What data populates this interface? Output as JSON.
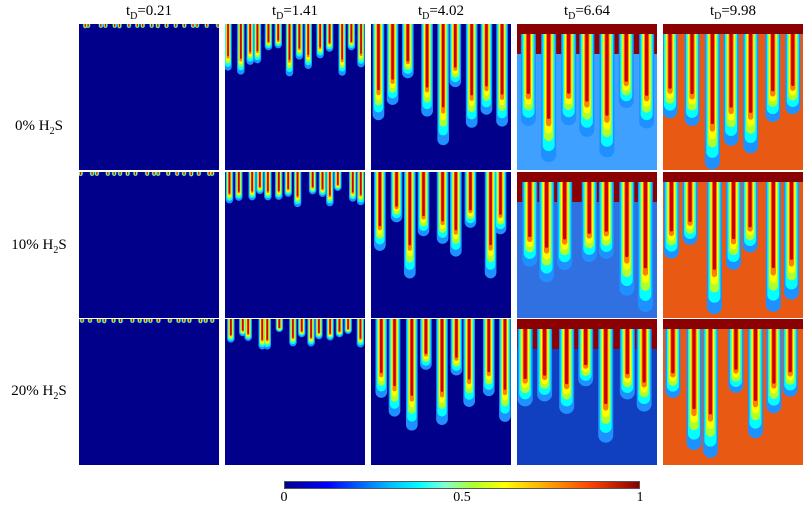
{
  "columns": [
    {
      "var": "t",
      "sub": "D",
      "value": "=0.21"
    },
    {
      "var": "t",
      "sub": "D",
      "value": "=1.41"
    },
    {
      "var": "t",
      "sub": "D",
      "value": "=4.02"
    },
    {
      "var": "t",
      "sub": "D",
      "value": "=6.64"
    },
    {
      "var": "t",
      "sub": "D",
      "value": "=9.98"
    }
  ],
  "rows": [
    {
      "pre": "0% H",
      "sub": "2",
      "post": "S"
    },
    {
      "pre": "10% H",
      "sub": "2",
      "post": "S"
    },
    {
      "pre": "20% H",
      "sub": "2",
      "post": "S"
    }
  ],
  "colorbar": {
    "ticks": [
      "0",
      "0.5",
      "1"
    ],
    "colors": {
      "low": "#00008b",
      "mid": "#7fffd4",
      "high": "#8b0000"
    }
  }
}
